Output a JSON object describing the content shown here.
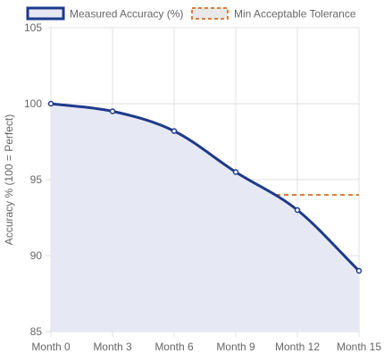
{
  "chart_data": {
    "type": "line",
    "categories": [
      "Month 0",
      "Month 3",
      "Month 6",
      "Month 9",
      "Month 12",
      "Month 15"
    ],
    "series": [
      {
        "name": "Measured Accuracy (%)",
        "values": [
          100,
          99.5,
          98.2,
          95.5,
          93,
          89
        ],
        "color": "#1e3a8a",
        "fill": "#e6e8f3",
        "style": "solid"
      },
      {
        "name": "Min Acceptable Tolerance",
        "values": [
          94,
          94,
          94,
          94,
          94,
          94
        ],
        "color": "#e07b39",
        "style": "dashed"
      }
    ],
    "ylabel": "Accuracy % (100 = Perfect)",
    "xlabel": "",
    "ylim": [
      85,
      105
    ],
    "yticks": [
      85,
      90,
      95,
      100,
      105
    ],
    "grid": true,
    "legend": "top"
  }
}
